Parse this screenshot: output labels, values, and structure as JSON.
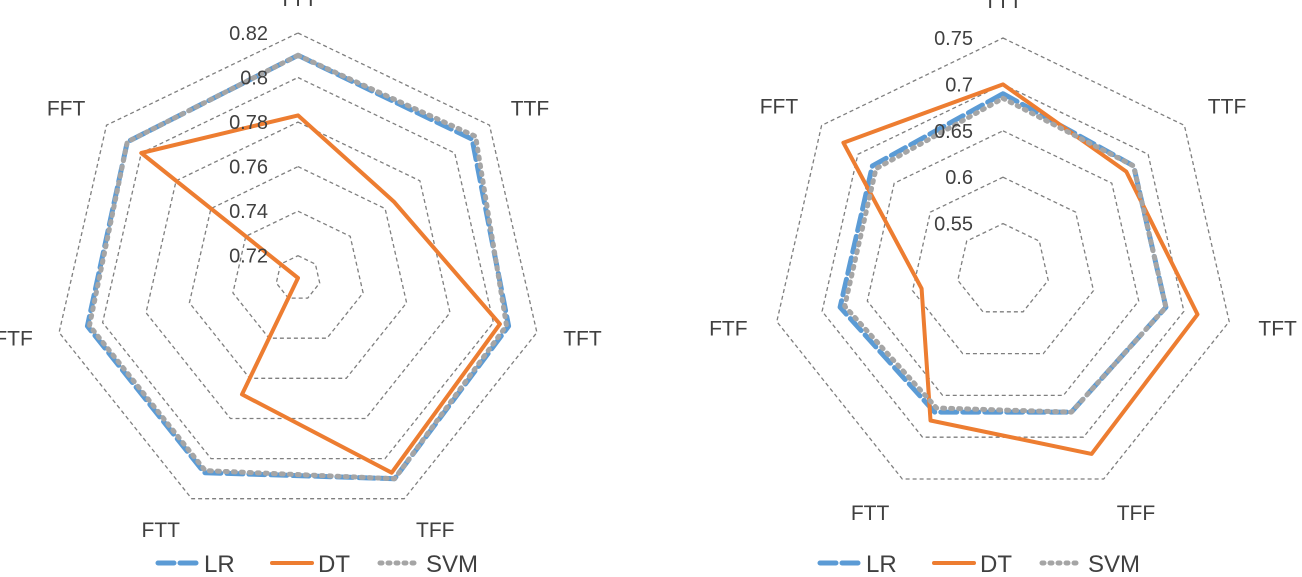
{
  "chart_data": [
    {
      "type": "radar",
      "axes": [
        "TTT",
        "TTF",
        "TFT",
        "TFF",
        "FTT",
        "FTF",
        "FFT"
      ],
      "rlim": [
        0.71,
        0.82
      ],
      "ticks": [
        0.72,
        0.74,
        0.76,
        0.78,
        0.8,
        0.82
      ],
      "tick_labels": [
        "0.72",
        "0.74",
        "0.76",
        "0.78",
        "0.8",
        "0.82"
      ],
      "series": [
        {
          "name": "LR",
          "color": "#5B9BD5",
          "style": "dashed",
          "values": [
            0.81,
            0.81,
            0.807,
            0.81,
            0.807,
            0.807,
            0.808
          ]
        },
        {
          "name": "DT",
          "color": "#ED7D31",
          "style": "solid",
          "values": [
            0.783,
            0.765,
            0.803,
            0.807,
            0.768,
            0.71,
            0.8
          ]
        },
        {
          "name": "SVM",
          "color": "#A5A5A5",
          "style": "dotted",
          "values": [
            0.81,
            0.812,
            0.806,
            0.81,
            0.806,
            0.806,
            0.808
          ]
        }
      ],
      "legend": "bottom"
    },
    {
      "type": "radar",
      "axes": [
        "TTT",
        "TTF",
        "TFT",
        "TFF",
        "FTT",
        "FTF",
        "FFT"
      ],
      "rlim": [
        0.5,
        0.75
      ],
      "ticks": [
        0.55,
        0.6,
        0.65,
        0.7,
        0.75
      ],
      "tick_labels": [
        "0.55",
        "0.6",
        "0.65",
        "0.7",
        "0.75"
      ],
      "series": [
        {
          "name": "LR",
          "color": "#5B9BD5",
          "style": "dashed",
          "values": [
            0.69,
            0.68,
            0.68,
            0.67,
            0.67,
            0.68,
            0.68
          ]
        },
        {
          "name": "DT",
          "color": "#ED7D31",
          "style": "solid",
          "values": [
            0.7,
            0.67,
            0.715,
            0.72,
            0.68,
            0.59,
            0.72
          ]
        },
        {
          "name": "SVM",
          "color": "#A5A5A5",
          "style": "dotted",
          "values": [
            0.685,
            0.68,
            0.68,
            0.67,
            0.665,
            0.675,
            0.675
          ]
        }
      ],
      "legend": "bottom"
    }
  ]
}
